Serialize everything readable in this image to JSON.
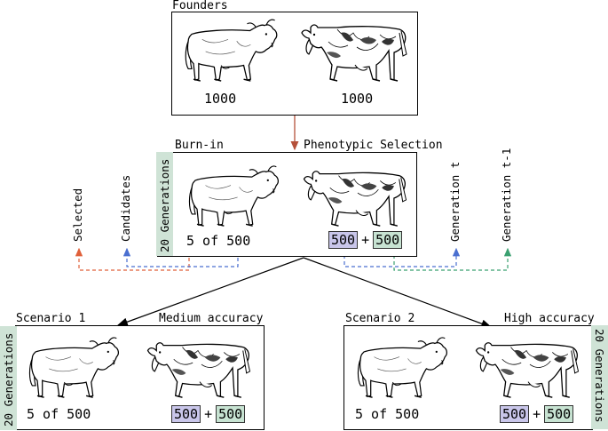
{
  "founders": {
    "title": "Founders",
    "count_left": "1000",
    "count_right": "1000"
  },
  "burnin": {
    "label_left": "Burn-in",
    "label_right": "Phenotypic Selection",
    "generations": "20 Generations",
    "select_text": "5 of 500",
    "tag_a": "500",
    "plus": "+",
    "tag_b": "500"
  },
  "side_labels": {
    "selected": "Selected",
    "candidates": "Candidates",
    "generation_t": "Generation t",
    "generation_t1": "Generation t-1"
  },
  "scenario1": {
    "title": "Scenario 1",
    "accuracy": "Medium accuracy",
    "generations": "20 Generations",
    "select_text": "5 of 500",
    "tag_a": "500",
    "plus": "+",
    "tag_b": "500"
  },
  "scenario2": {
    "title": "Scenario 2",
    "accuracy": "High accuracy",
    "generations": "20 Generations",
    "select_text": "5 of 500",
    "tag_a": "500",
    "plus": "+",
    "tag_b": "500"
  },
  "colors": {
    "arrow_main": "#b5503a",
    "selected_line": "#e0603a",
    "candidates_line": "#4a6fd0",
    "generation_t_line": "#4a6fd0",
    "generation_t1_line": "#3aa070",
    "tag_purple": "#c9c6ea",
    "tag_green": "#c7e3d2",
    "gen_band": "#cfe3d6"
  },
  "icons": {
    "bull": "bull-icon",
    "cow": "cow-icon"
  }
}
